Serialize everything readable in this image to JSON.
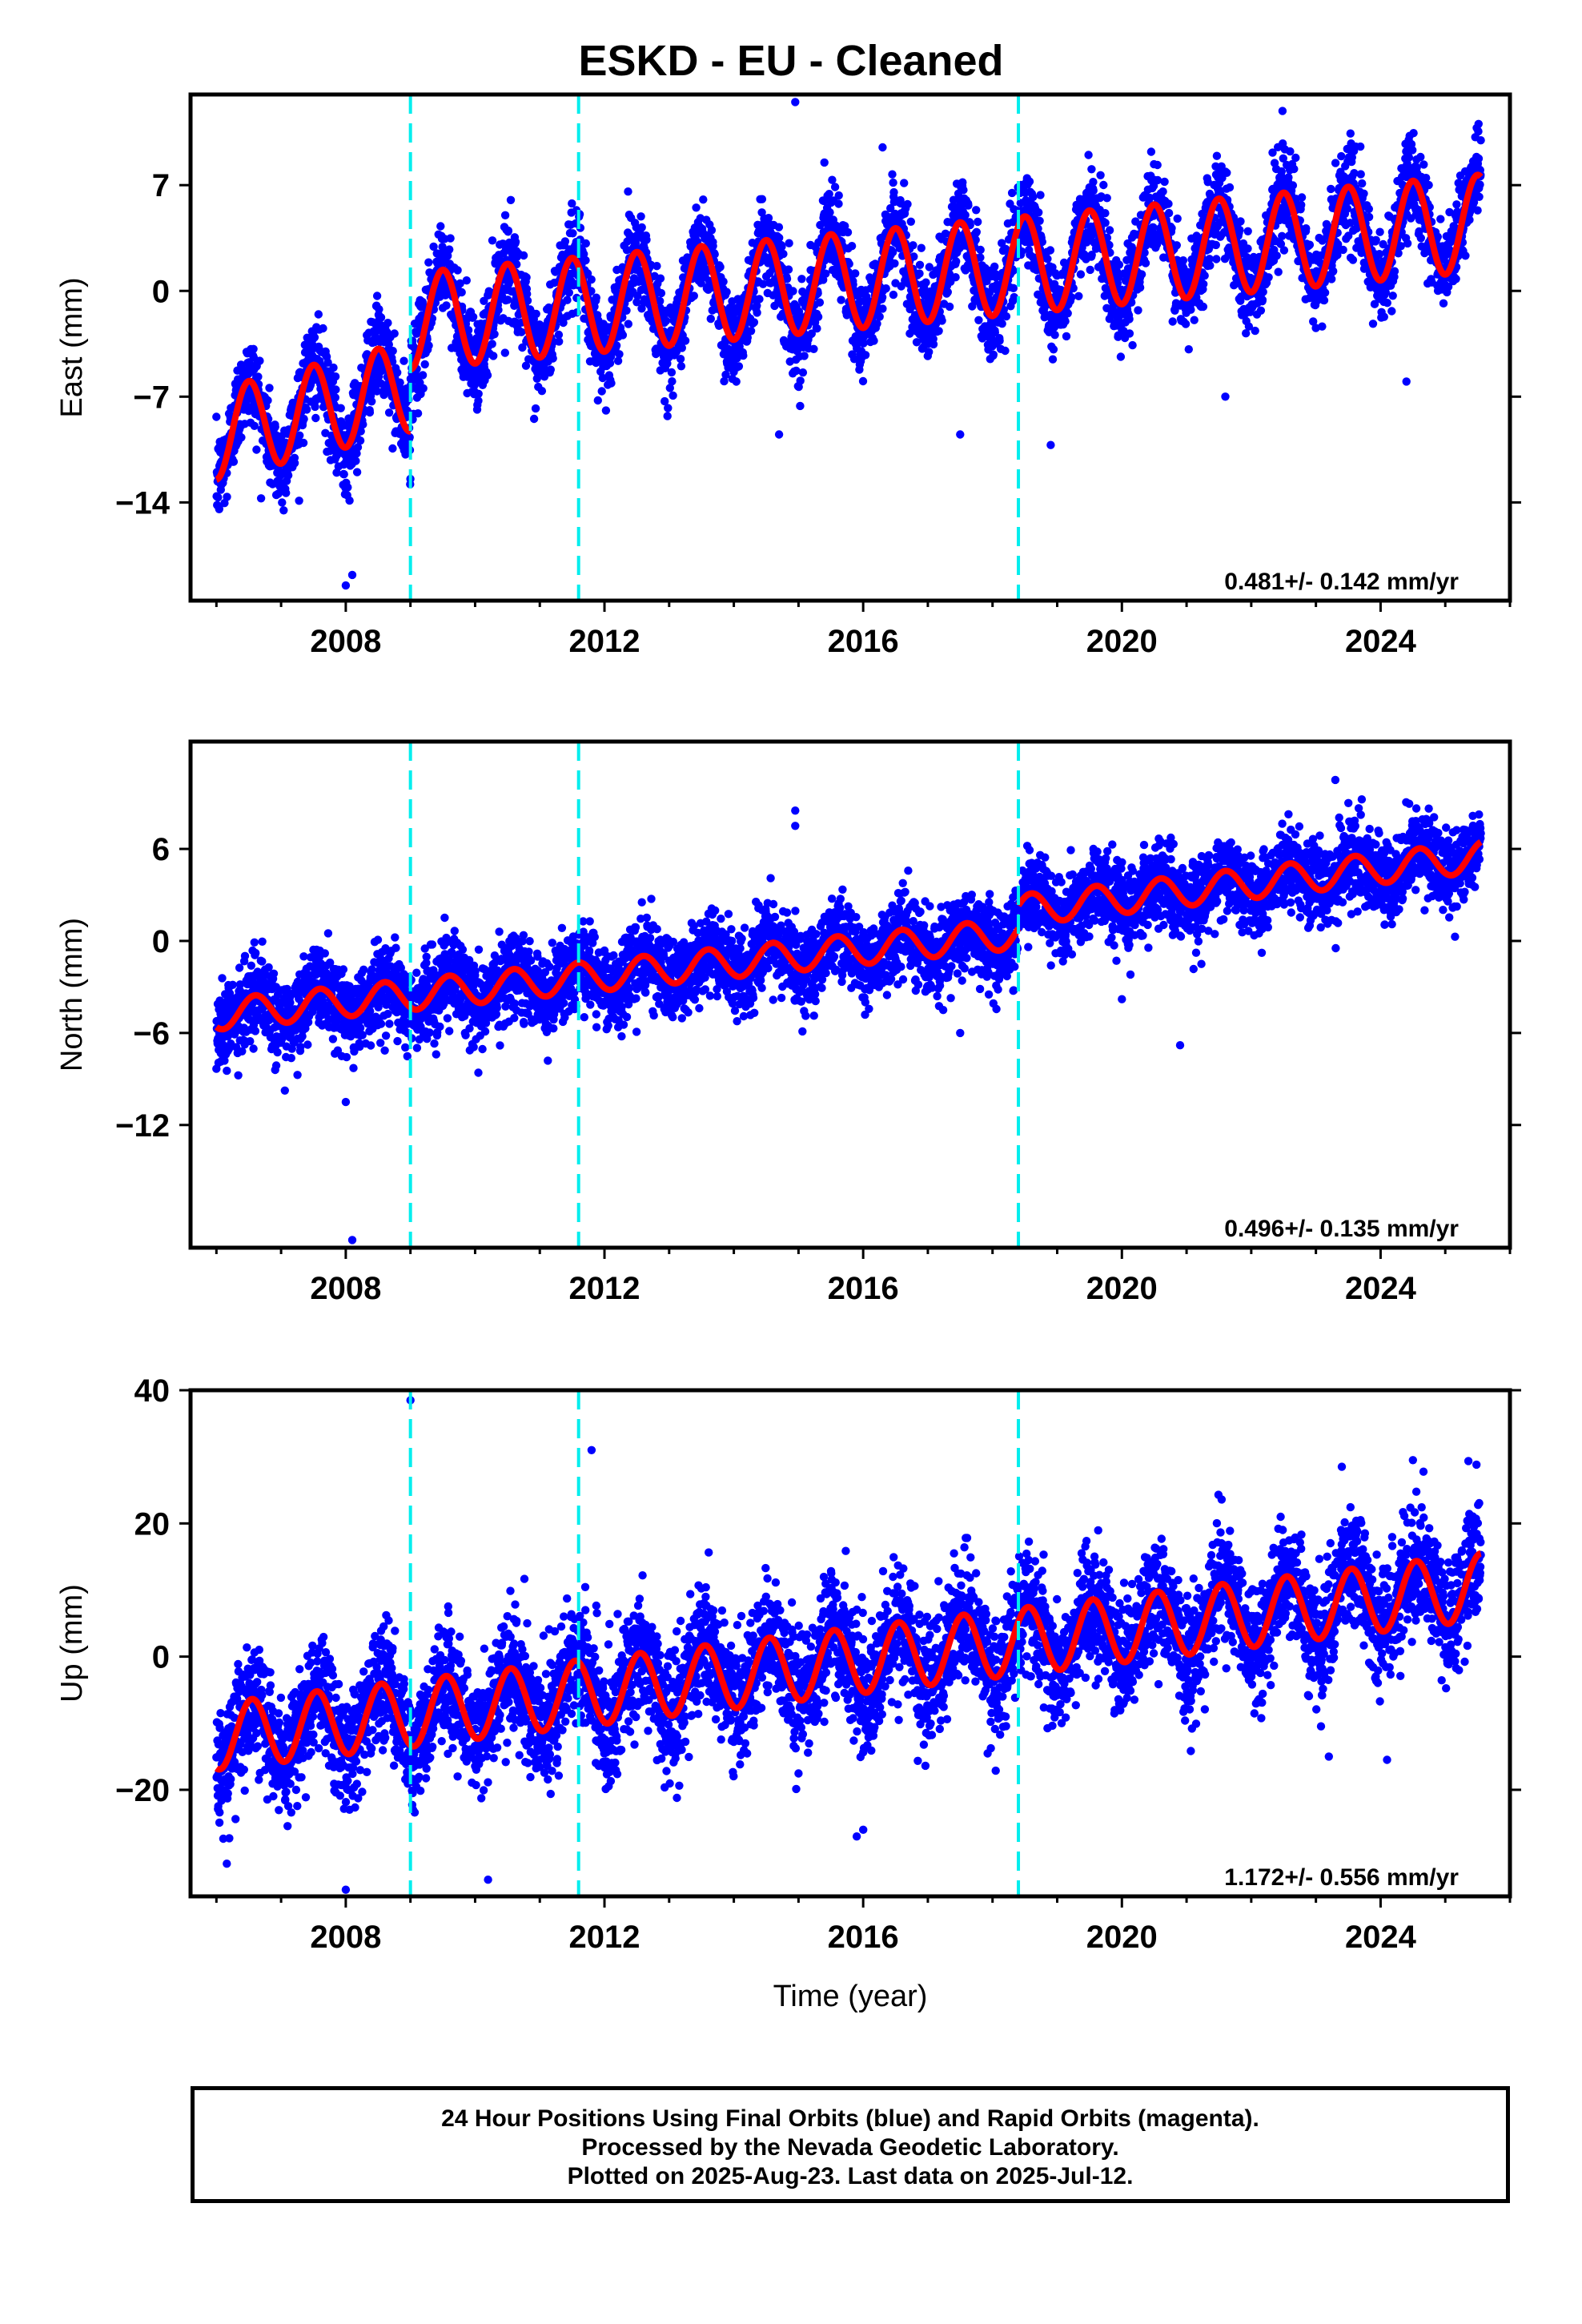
{
  "title": "ESKD  - EU - Cleaned",
  "colors": {
    "points": "#0000ff",
    "model": "#ff0000",
    "offsets": "#00eeee",
    "frame": "#000000"
  },
  "xlabel": "Time (year)",
  "footer": {
    "line1": "24 Hour Positions Using Final Orbits (blue) and Rapid Orbits (magenta).",
    "line2": "Processed by the Nevada Geodetic Laboratory.",
    "line3": "Plotted on 2025-Aug-23. Last data on 2025-Jul-12."
  },
  "chart_data": [
    {
      "type": "scatter",
      "ylabel": "East (mm)",
      "xlim": [
        2005.6,
        2026.0
      ],
      "ylim": [
        -20.5,
        13
      ],
      "x_ticks": [
        2008,
        2012,
        2016,
        2020,
        2024
      ],
      "x_tick_labels": [
        "2008",
        "2012",
        "2016",
        "2020",
        "2024"
      ],
      "y_ticks": [
        -14,
        -7,
        0,
        7
      ],
      "y_tick_labels": [
        "−14",
        "−7",
        "0",
        "7"
      ],
      "rate": "0.481+/- 0.142 mm/yr",
      "offsets": [
        2009.0,
        2011.6,
        2018.4
      ],
      "x_start": 2006.0,
      "x_end": 2025.55,
      "segments": [
        {
          "start": 2006.0,
          "end": 2009.0,
          "base_start": -9.5,
          "base_end": -6.3,
          "amplitude": 3.0,
          "phase": 0.5
        },
        {
          "start": 2009.0,
          "end": 2025.55,
          "base_start": -2.0,
          "base_end": 4.5,
          "amplitude": 3.2,
          "phase": 0.5
        }
      ],
      "scatter_sd": 1.5,
      "outliers": [
        [
          2014.95,
          12.5
        ],
        [
          2015.4,
          8.5
        ],
        [
          2016.3,
          9.5
        ],
        [
          2008.0,
          -19.5
        ],
        [
          2008.1,
          -18.8
        ],
        [
          2017.5,
          -9.5
        ],
        [
          2014.7,
          -9.5
        ],
        [
          2024.4,
          -6.0
        ],
        [
          2021.6,
          -7.0
        ],
        [
          2018.9,
          -10.2
        ]
      ]
    },
    {
      "type": "scatter",
      "ylabel": "North (mm)",
      "xlim": [
        2005.6,
        2026.0
      ],
      "ylim": [
        -20,
        13
      ],
      "x_ticks": [
        2008,
        2012,
        2016,
        2020,
        2024
      ],
      "x_tick_labels": [
        "2008",
        "2012",
        "2016",
        "2020",
        "2024"
      ],
      "y_ticks": [
        -12,
        -6,
        0,
        6
      ],
      "y_tick_labels": [
        "−12",
        "−6",
        "0",
        "6"
      ],
      "rate": "0.496+/- 0.135 mm/yr",
      "offsets": [
        2009.0,
        2011.6,
        2018.4
      ],
      "x_start": 2006.0,
      "x_end": 2025.55,
      "segments": [
        {
          "start": 2006.0,
          "end": 2018.4,
          "base_start": -4.8,
          "base_end": 0.5,
          "amplitude": 1.0,
          "phase": 0.6
        },
        {
          "start": 2018.4,
          "end": 2025.55,
          "base_start": 2.0,
          "base_end": 5.5,
          "amplitude": 1.0,
          "phase": 0.6
        }
      ],
      "scatter_sd": 1.3,
      "outliers": [
        [
          2014.95,
          8.5
        ],
        [
          2014.95,
          7.5
        ],
        [
          2008.0,
          -10.5
        ],
        [
          2008.1,
          -19.5
        ],
        [
          2020.0,
          -3.8
        ],
        [
          2020.9,
          -6.8
        ],
        [
          2017.5,
          -6.0
        ],
        [
          2023.3,
          10.5
        ]
      ]
    },
    {
      "type": "scatter",
      "ylabel": "Up (mm)",
      "xlim": [
        2005.6,
        2026.0
      ],
      "ylim": [
        -36,
        40
      ],
      "x_ticks": [
        2008,
        2012,
        2016,
        2020,
        2024
      ],
      "x_tick_labels": [
        "2008",
        "2012",
        "2016",
        "2020",
        "2024"
      ],
      "y_ticks": [
        -20,
        0,
        20,
        40
      ],
      "y_tick_labels": [
        "−20",
        "0",
        "20",
        "40"
      ],
      "rate": "1.172+/- 0.556 mm/yr",
      "offsets": [
        2009.0,
        2011.6,
        2018.4
      ],
      "x_start": 2006.0,
      "x_end": 2025.55,
      "segments": [
        {
          "start": 2006.0,
          "end": 2025.55,
          "base_start": -12.0,
          "base_end": 10.5,
          "amplitude": 5.0,
          "phase": 0.55
        }
      ],
      "scatter_sd": 4.5,
      "outliers": [
        [
          2009.0,
          38.5
        ],
        [
          2011.8,
          31.0
        ],
        [
          2008.0,
          -35.0
        ],
        [
          2010.2,
          -33.5
        ],
        [
          2015.9,
          -27.0
        ],
        [
          2016.0,
          -26.0
        ],
        [
          2024.5,
          29.5
        ],
        [
          2023.4,
          28.5
        ],
        [
          2023.2,
          -15.0
        ],
        [
          2024.1,
          -15.5
        ]
      ]
    }
  ]
}
